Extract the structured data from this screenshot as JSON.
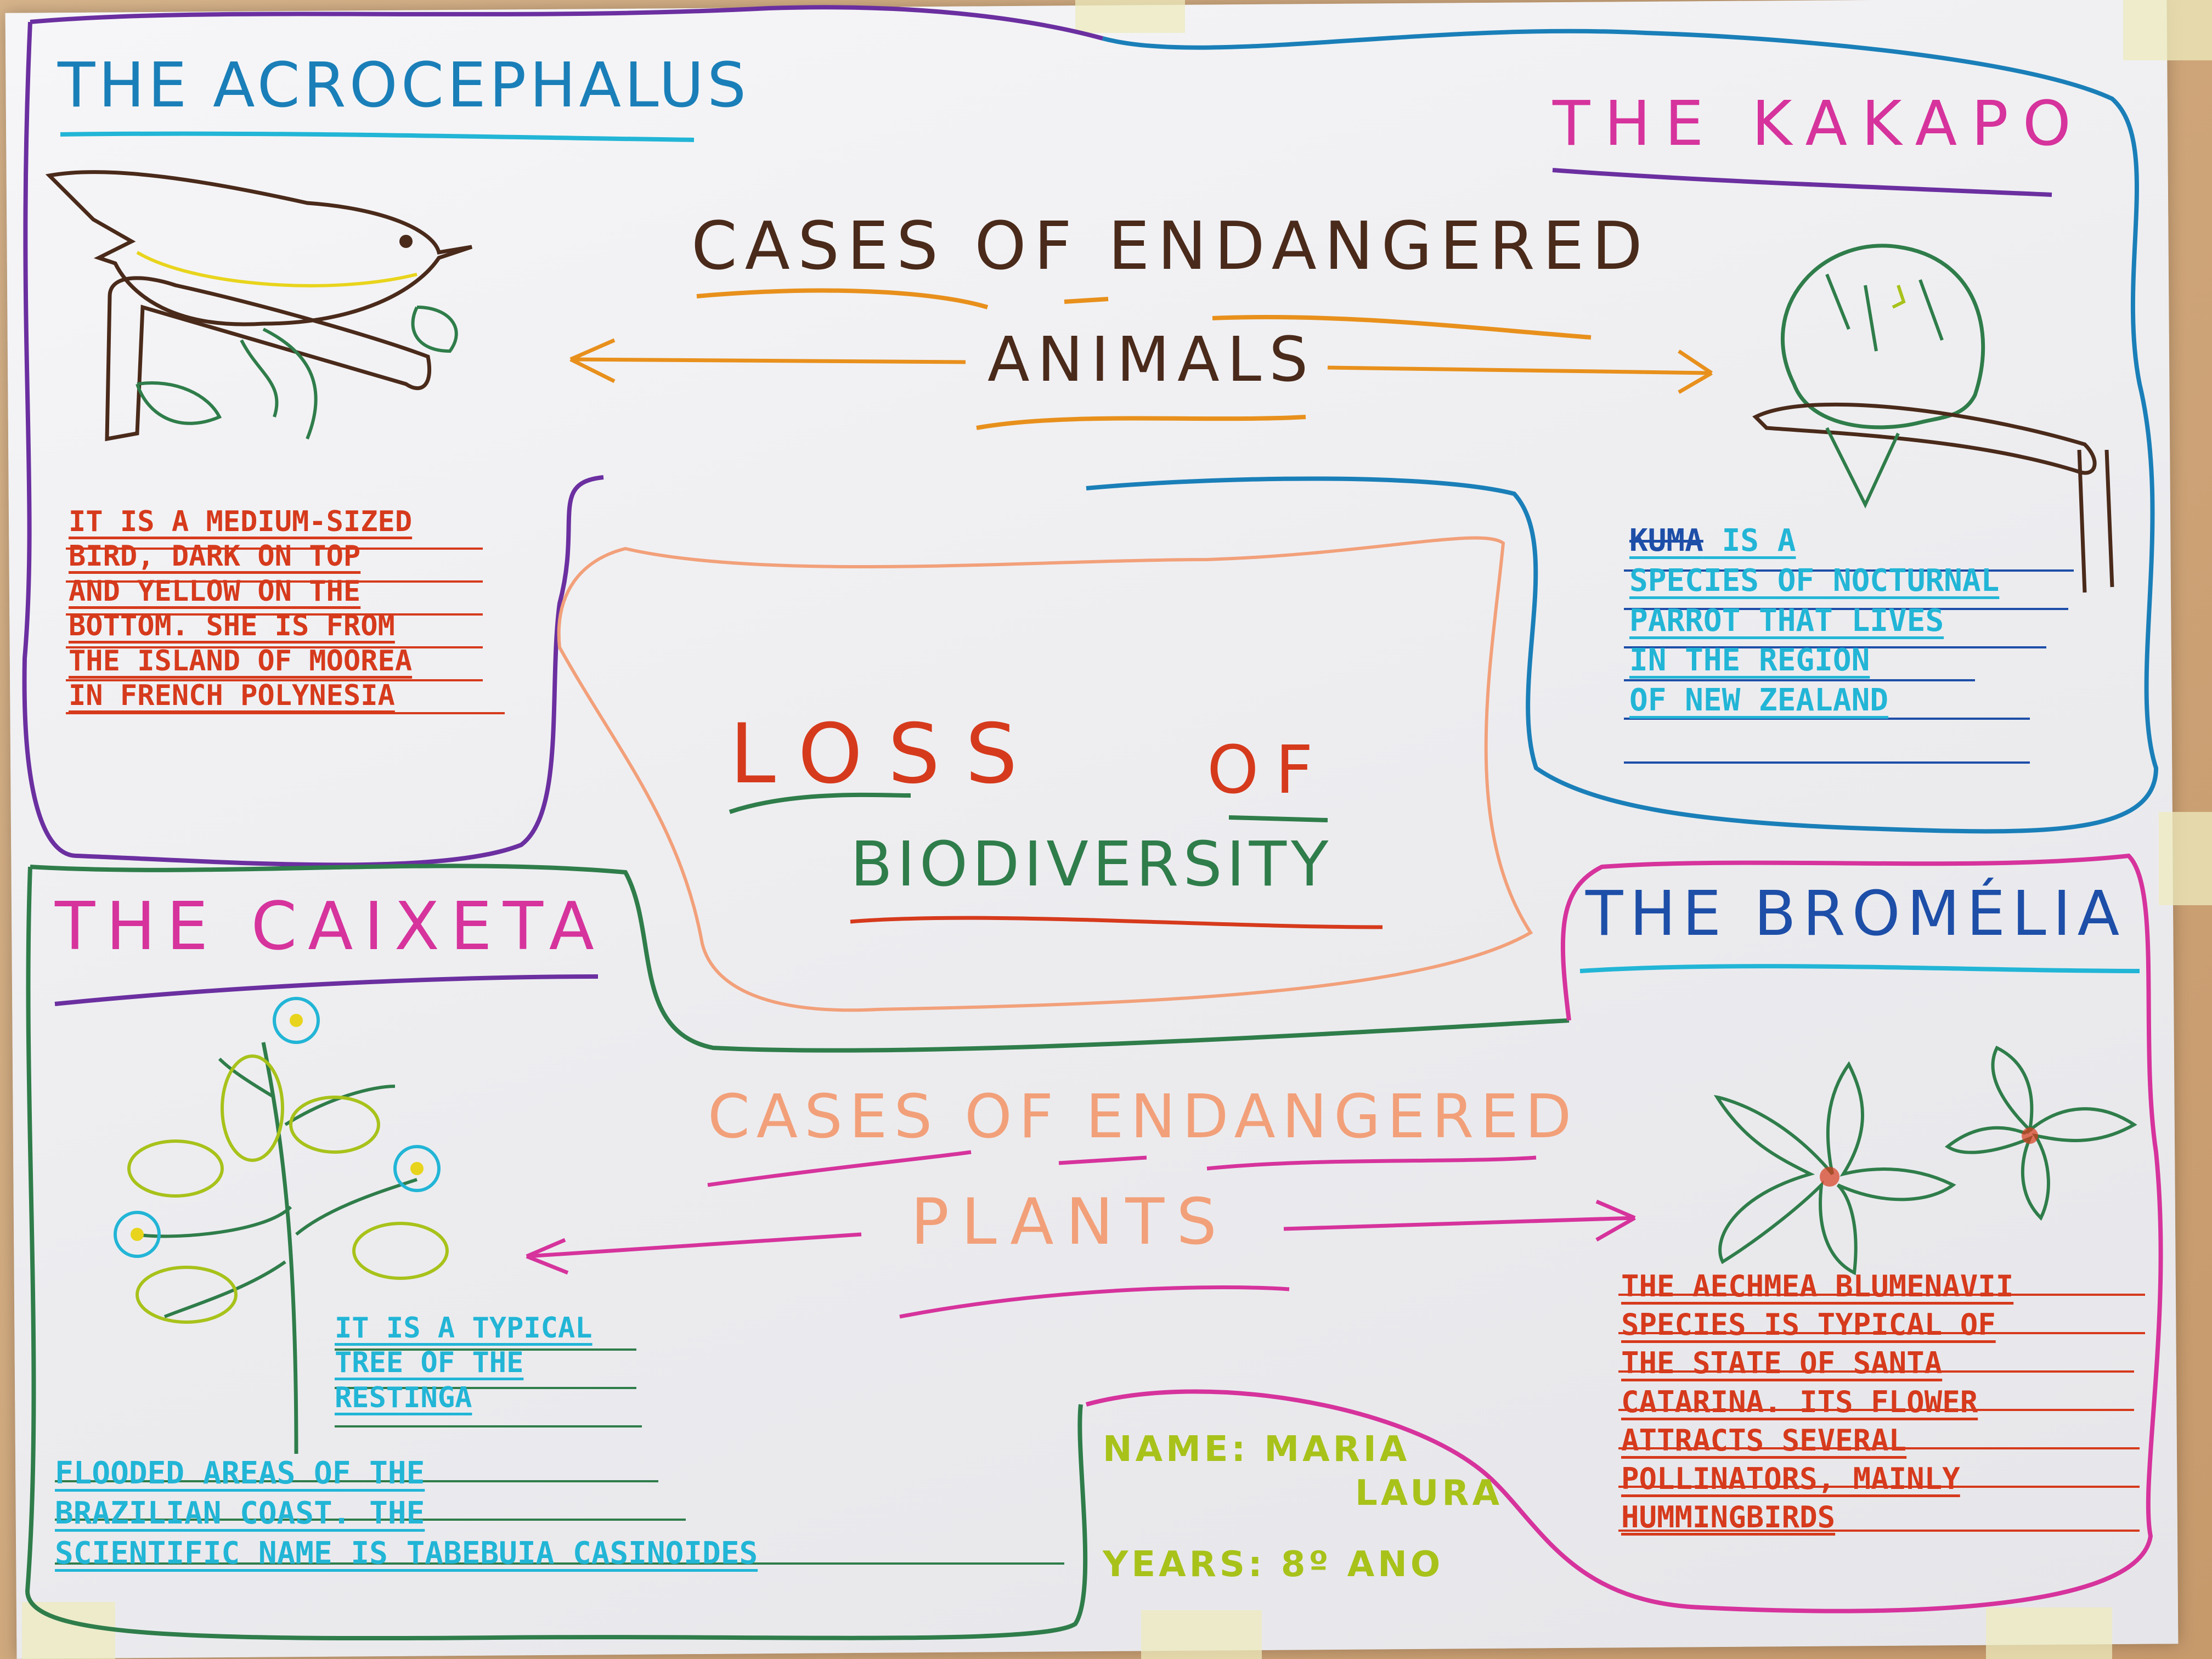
{
  "acrocephalus": {
    "title": "THE ACROCEPHALUS",
    "lines": [
      "IT IS A MEDIUM-SIZED",
      "BIRD, DARK ON TOP",
      "AND YELLOW ON THE",
      "BOTTOM. SHE IS FROM",
      "THE ISLAND OF MOOREA",
      "IN FRENCH POLYNESIA"
    ]
  },
  "kakapo": {
    "title": "THE KAKAPO",
    "struck": "KUMA",
    "lines": [
      "IS A",
      "SPECIES OF NOCTURNAL",
      "PARROT THAT LIVES",
      "IN THE REGION",
      "OF NEW ZEALAND"
    ]
  },
  "animals": {
    "line1": "CASES OF ENDANGERED",
    "line2": "ANIMALS"
  },
  "center": {
    "line1": "LOSS",
    "line1b": "OF",
    "line2": "BIODIVERSITY"
  },
  "plants": {
    "line1": "CASES OF ENDANGERED",
    "line2": "PLANTS"
  },
  "caixeta": {
    "title": "THE CAIXETA",
    "lines_short": [
      "IT IS A TYPICAL",
      "TREE OF THE",
      "RESTINGA"
    ],
    "lines_long": [
      "FLOODED AREAS OF THE",
      "BRAZILIAN COAST. THE",
      "SCIENTIFIC NAME IS TABEBUIA CASINOIDES"
    ]
  },
  "bromelia": {
    "title": "THE BROMÉLIA",
    "lines": [
      "THE AECHMEA BLUMENAVII",
      "SPECIES IS TYPICAL OF",
      "THE STATE OF SANTA",
      "CATARINA. ITS FLOWER",
      "ATTRACTS SEVERAL",
      "POLLINATORS, MAINLY",
      "HUMMINGBIRDS"
    ]
  },
  "student": {
    "name_label": "NAME: MARIA",
    "name_rest": "LAURA",
    "year": "YEARS: 8º ANO"
  },
  "colors": {
    "purple": "#6b2fa0",
    "blue": "#1a7fb8",
    "pink": "#d6339c",
    "green": "#2f7d4a",
    "orange": "#e8901c",
    "red": "#d63a1c",
    "dark": "#4a2a1a",
    "cyan": "#22b5d6",
    "lime": "#a8c21a",
    "peach": "#f2a07a",
    "darkblue": "#1d4ea8"
  }
}
